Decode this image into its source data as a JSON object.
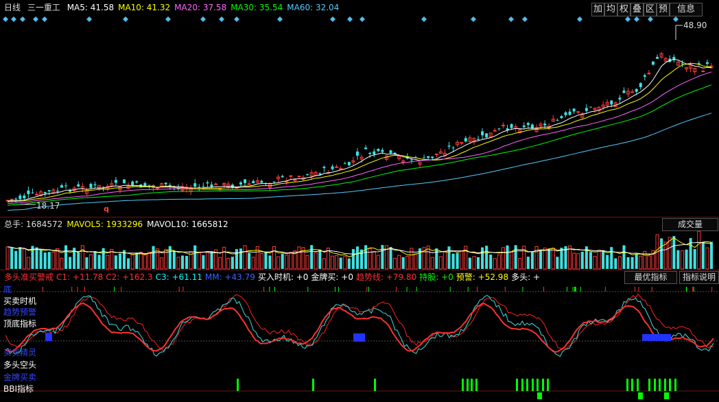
{
  "price_header": {
    "period": "日线",
    "stock_name": "三一重工",
    "ma": [
      {
        "label": "MA5: 41.58",
        "color": "#ffffff"
      },
      {
        "label": "MA10: 41.32",
        "color": "#ffff00"
      },
      {
        "label": "MA20: 37.58",
        "color": "#ff66ff"
      },
      {
        "label": "MA30: 35.54",
        "color": "#00ff00"
      },
      {
        "label": "MA60: 32.04",
        "color": "#55ccff"
      }
    ]
  },
  "toolbar": [
    "加",
    "均",
    "权",
    "叠",
    "区",
    "预",
    "信息"
  ],
  "price_annotations": {
    "high": "48.90",
    "low": "18.17",
    "marker": "q"
  },
  "volume_header": {
    "items": [
      {
        "label": "总手: 1684572",
        "color": "#dddddd"
      },
      {
        "label": "MAVOL5: 1933296",
        "color": "#ffff00"
      },
      {
        "label": "MAVOL10: 1665812",
        "color": "#ffffff"
      }
    ],
    "button": "成交量"
  },
  "indicator_header": {
    "items": [
      {
        "label": "多头准买警戒",
        "color": "#ff3030"
      },
      {
        "label": "C1: +11.78",
        "color": "#ff3030"
      },
      {
        "label": "C2: +162.3",
        "color": "#ff3030"
      },
      {
        "label": "C3: +61.11",
        "color": "#00ffff"
      },
      {
        "label": "MM: +43.79",
        "color": "#3366ff"
      },
      {
        "label": "买入时机: +0",
        "color": "#ffffff"
      },
      {
        "label": "金牌买: +0",
        "color": "#ffffff"
      },
      {
        "label": "趋势线: +79.80",
        "color": "#ff3030"
      },
      {
        "label": "持股: +0",
        "color": "#00ff00"
      },
      {
        "label": "预警: +52.98",
        "color": "#ffff00"
      },
      {
        "label": "多头: +",
        "color": "#ffffff"
      }
    ],
    "buttons": [
      "最优指标",
      "指标说明"
    ]
  },
  "indicator_labels": [
    {
      "text": "底",
      "color": "#3344ff"
    },
    {
      "text": "买卖时机",
      "color": "#ffffff"
    },
    {
      "text": "趋势预警",
      "color": "#3344ff"
    },
    {
      "text": "顶底指标",
      "color": "#ffffff"
    },
    {
      "text": "买卖精灵",
      "color": "#3344ff"
    },
    {
      "text": "多头空头",
      "color": "#ffffff"
    },
    {
      "text": "金牌买卖",
      "color": "#3344ff"
    },
    {
      "text": "BBI指标",
      "color": "#ffffff"
    }
  ]
}
